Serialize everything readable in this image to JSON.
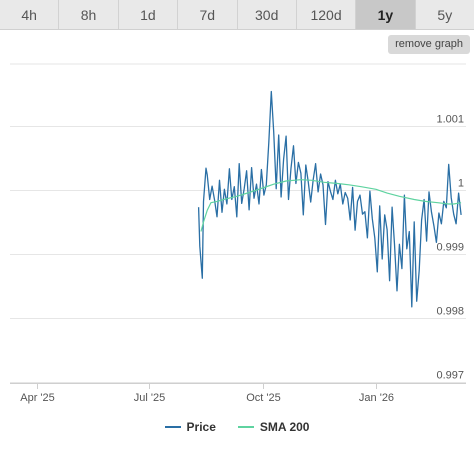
{
  "tabs": [
    {
      "label": "4h"
    },
    {
      "label": "8h"
    },
    {
      "label": "1d"
    },
    {
      "label": "7d"
    },
    {
      "label": "30d"
    },
    {
      "label": "120d"
    },
    {
      "label": "1y"
    },
    {
      "label": "5y"
    }
  ],
  "active_tab": "1y",
  "remove_graph_label": "remove graph",
  "colors": {
    "price": "#2a6fa5",
    "sma": "#5fd3a0",
    "grid": "#e6e6e6"
  },
  "chart_data": {
    "type": "line",
    "x_ticks": [
      "Apr '25",
      "Jul '25",
      "Oct '25",
      "Jan '26"
    ],
    "x_range": [
      "2025-03-10",
      "2026-03-15"
    ],
    "y_ticks": [
      "1.001",
      "1",
      "0.999",
      "0.998",
      "0.997"
    ],
    "ylim": [
      0.99698,
      1.00197
    ],
    "series": [
      {
        "name": "Price",
        "x": [
          "2025-08-10",
          "2025-08-11",
          "2025-08-13",
          "2025-08-14",
          "2025-08-16",
          "2025-08-17",
          "2025-08-19",
          "2025-08-21",
          "2025-08-23",
          "2025-08-25",
          "2025-08-27",
          "2025-08-29",
          "2025-08-31",
          "2025-09-02",
          "2025-09-04",
          "2025-09-06",
          "2025-09-08",
          "2025-09-10",
          "2025-09-12",
          "2025-09-14",
          "2025-09-16",
          "2025-09-18",
          "2025-09-20",
          "2025-09-22",
          "2025-09-24",
          "2025-09-26",
          "2025-09-28",
          "2025-09-30",
          "2025-10-02",
          "2025-10-04",
          "2025-10-06",
          "2025-10-08",
          "2025-10-10",
          "2025-10-12",
          "2025-10-14",
          "2025-10-16",
          "2025-10-18",
          "2025-10-20",
          "2025-10-22",
          "2025-10-24",
          "2025-10-26",
          "2025-10-28",
          "2025-10-30",
          "2025-11-01",
          "2025-11-03",
          "2025-11-05",
          "2025-11-07",
          "2025-11-09",
          "2025-11-11",
          "2025-11-13",
          "2025-11-15",
          "2025-11-17",
          "2025-11-19",
          "2025-11-21",
          "2025-11-23",
          "2025-11-25",
          "2025-11-27",
          "2025-11-29",
          "2025-12-01",
          "2025-12-03",
          "2025-12-05",
          "2025-12-07",
          "2025-12-09",
          "2025-12-11",
          "2025-12-13",
          "2025-12-15",
          "2025-12-17",
          "2025-12-19",
          "2025-12-21",
          "2025-12-23",
          "2025-12-25",
          "2025-12-27",
          "2025-12-29",
          "2025-12-31",
          "2026-01-02",
          "2026-01-04",
          "2026-01-06",
          "2026-01-08",
          "2026-01-10",
          "2026-01-12",
          "2026-01-14",
          "2026-01-16",
          "2026-01-18",
          "2026-01-20",
          "2026-01-22",
          "2026-01-24",
          "2026-01-26",
          "2026-01-28",
          "2026-01-30",
          "2026-02-01",
          "2026-02-03",
          "2026-02-05",
          "2026-02-07",
          "2026-02-09",
          "2026-02-11",
          "2026-02-13",
          "2026-02-15",
          "2026-02-17",
          "2026-02-19",
          "2026-02-21",
          "2026-02-23",
          "2026-02-25",
          "2026-02-27",
          "2026-03-01",
          "2026-03-03",
          "2026-03-05",
          "2026-03-07",
          "2026-03-09",
          "2026-03-11"
        ],
        "values": [
          0.99973,
          0.99912,
          0.99862,
          0.99982,
          1.00034,
          1.00024,
          0.99985,
          1.00006,
          0.99984,
          0.99958,
          1.00015,
          0.99965,
          1.00001,
          0.99978,
          1.00033,
          0.99985,
          1.00005,
          0.99958,
          1.00041,
          0.99979,
          1.00002,
          1.0003,
          0.99969,
          1.00035,
          0.99987,
          1.00009,
          0.99978,
          1.00032,
          0.99992,
          1.00008,
          1.00074,
          1.00154,
          1.00091,
          1.00002,
          1.00086,
          0.99989,
          1.00048,
          1.00084,
          0.99985,
          1.00034,
          1.00069,
          1.0001,
          1.00043,
          1.00026,
          0.99961,
          1.00039,
          1.00013,
          0.99981,
          1.00016,
          1.00041,
          0.99997,
          1.00025,
          1.00008,
          0.99946,
          1.00013,
          0.99998,
          0.99985,
          1.00015,
          0.99994,
          1.00009,
          0.99978,
          0.99996,
          0.99987,
          0.99953,
          1.00004,
          0.99937,
          0.99982,
          0.99992,
          0.99962,
          0.99966,
          0.99925,
          0.99998,
          0.99955,
          0.99925,
          0.99872,
          0.99975,
          0.99892,
          0.99961,
          0.99938,
          0.99858,
          0.99973,
          0.99915,
          0.99842,
          0.99915,
          0.99877,
          0.99992,
          0.99908,
          0.99935,
          0.99817,
          0.9995,
          0.99826,
          0.99874,
          0.99953,
          0.99985,
          0.9992,
          0.99997,
          0.99965,
          0.99943,
          0.99918,
          0.99964,
          0.99947,
          0.99982,
          0.99972,
          1.0004,
          0.99988,
          0.99962,
          0.99947,
          0.99995,
          0.99961
        ]
      },
      {
        "name": "SMA 200",
        "x": [
          "2025-08-12",
          "2025-08-14",
          "2025-08-17",
          "2025-08-20",
          "2025-08-25",
          "2025-09-01",
          "2025-09-10",
          "2025-09-20",
          "2025-10-01",
          "2025-10-10",
          "2025-10-20",
          "2025-11-01",
          "2025-11-10",
          "2025-11-20",
          "2025-12-01",
          "2025-12-10",
          "2025-12-20",
          "2026-01-01",
          "2026-01-10",
          "2026-01-20",
          "2026-02-01",
          "2026-02-10",
          "2026-02-20",
          "2026-03-01",
          "2026-03-05",
          "2026-03-11"
        ],
        "values": [
          0.99935,
          0.9995,
          0.99968,
          0.9998,
          0.99982,
          0.99986,
          0.9999,
          0.99996,
          1.00003,
          1.00009,
          1.00014,
          1.00016,
          1.00015,
          1.00012,
          1.0001,
          1.00008,
          1.00005,
          1.00001,
          0.99995,
          0.9999,
          0.99985,
          0.99982,
          0.9998,
          0.99978,
          0.99978,
          0.9998
        ]
      }
    ],
    "legend": [
      "Price",
      "SMA 200"
    ],
    "legend_position": "bottom"
  }
}
